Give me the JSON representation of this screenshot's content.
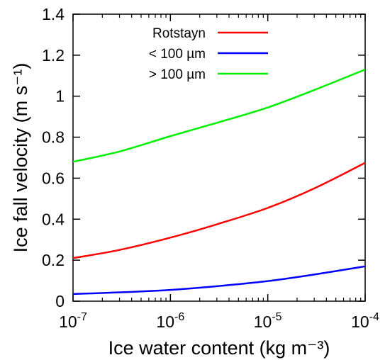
{
  "chart_data": {
    "type": "line",
    "x_scale": "log",
    "xlim": [
      1e-07,
      0.0001
    ],
    "ylim": [
      0,
      1.4
    ],
    "xlabel": "Ice water content (kg m⁻³)",
    "ylabel": "Ice fall velocity (m s⁻¹)",
    "legend_position": "top-center",
    "grid": false,
    "x_ticks": [
      {
        "value": 1e-07,
        "base": "10",
        "exp": "-7"
      },
      {
        "value": 1e-06,
        "base": "10",
        "exp": "-6"
      },
      {
        "value": 1e-05,
        "base": "10",
        "exp": "-5"
      },
      {
        "value": 0.0001,
        "base": "10",
        "exp": "-4"
      }
    ],
    "y_ticks": [
      {
        "value": 0,
        "label": "0"
      },
      {
        "value": 0.2,
        "label": "0.2"
      },
      {
        "value": 0.4,
        "label": "0.4"
      },
      {
        "value": 0.6,
        "label": "0.6"
      },
      {
        "value": 0.8,
        "label": "0.8"
      },
      {
        "value": 1.0,
        "label": "1"
      },
      {
        "value": 1.2,
        "label": "1.2"
      },
      {
        "value": 1.4,
        "label": "1.4"
      }
    ],
    "series": [
      {
        "name": "Rotstayn",
        "color": "#ff0000",
        "x": [
          1e-07,
          3e-07,
          1e-06,
          3e-06,
          1e-05,
          3e-05,
          0.0001
        ],
        "y": [
          0.21,
          0.25,
          0.31,
          0.375,
          0.455,
          0.55,
          0.675
        ]
      },
      {
        "name": "< 100 µm",
        "color": "#0000ff",
        "x": [
          1e-07,
          3e-07,
          1e-06,
          3e-06,
          1e-05,
          3e-05,
          0.0001
        ],
        "y": [
          0.035,
          0.043,
          0.055,
          0.073,
          0.098,
          0.13,
          0.17
        ]
      },
      {
        "name": "> 100 µm",
        "color": "#00ee00",
        "x": [
          1e-07,
          3e-07,
          1e-06,
          3e-06,
          1e-05,
          3e-05,
          0.0001
        ],
        "y": [
          0.68,
          0.73,
          0.805,
          0.87,
          0.945,
          1.03,
          1.13
        ]
      }
    ]
  }
}
